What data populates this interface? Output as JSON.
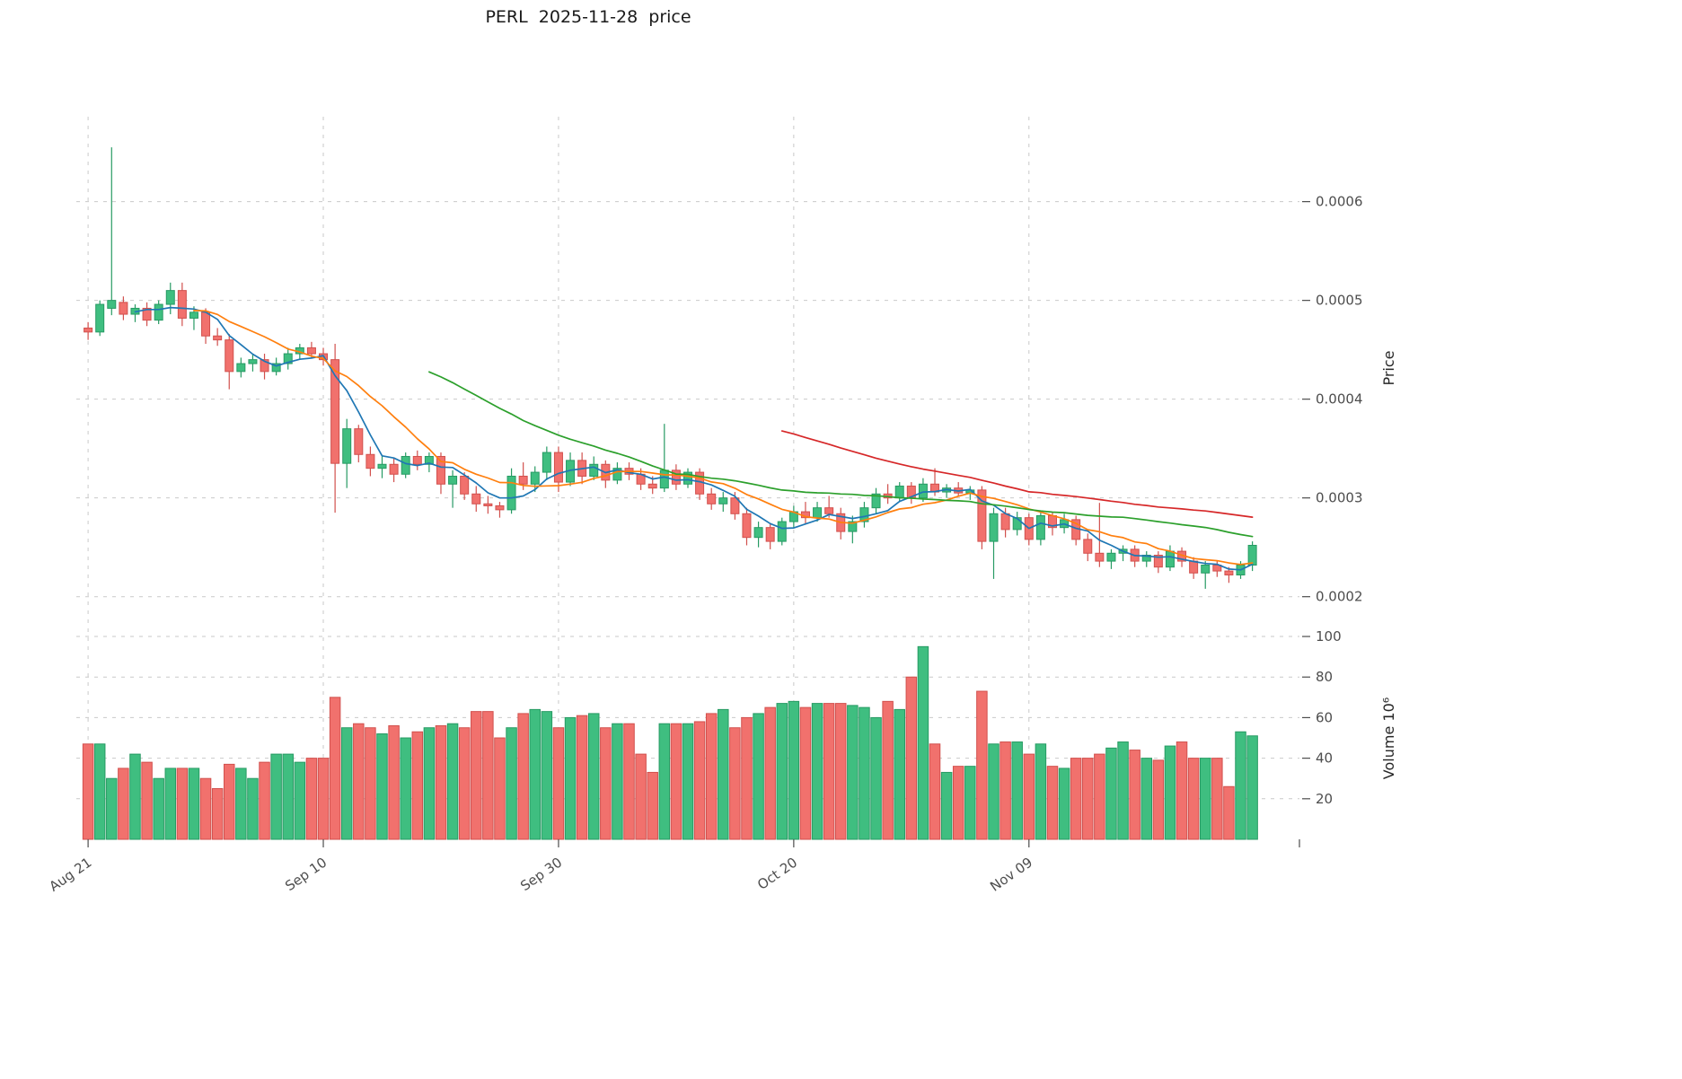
{
  "chart_data": {
    "type": "candlestick",
    "title": "PERL  2025-11-28  price",
    "panels": [
      "price",
      "volume"
    ],
    "price_scale": 0.0001,
    "volume_unit": 1000000,
    "n_points": 100,
    "x_axis": {
      "tick_labels": [
        "Aug 21",
        "Sep 10",
        "Sep 30",
        "Oct 20",
        "Nov 09"
      ],
      "tick_indices": [
        0,
        20,
        40,
        60,
        80
      ],
      "xlim": [
        -1,
        103
      ]
    },
    "price_axis": {
      "label": "Price",
      "tick_labels": [
        "0.0002",
        "0.0003",
        "0.0004",
        "0.0005",
        "0.0006"
      ],
      "tick_values": [
        2,
        3,
        4,
        5,
        6
      ],
      "ylim": [
        1.77,
        6.86
      ],
      "grid": true
    },
    "volume_axis": {
      "label": "Volume  10⁶",
      "tick_labels": [
        "20",
        "40",
        "60",
        "80",
        "100"
      ],
      "tick_values": [
        20,
        40,
        60,
        80,
        100
      ],
      "ylim": [
        0,
        104
      ],
      "grid": true
    },
    "moving_averages": {
      "windows": [
        5,
        10,
        30,
        60
      ],
      "colors": [
        "#1f77b4",
        "#ff7f0e",
        "#2ca02c",
        "#d62728"
      ]
    },
    "colors": {
      "up": "#3fbe80",
      "up_edge": "#279a63",
      "down": "#f1716d",
      "down_edge": "#d1504d",
      "grid": "#c9c9c9",
      "tick_text": "#4d4d4d",
      "title_text": "#1a1a1a"
    },
    "ohlc": [
      [
        4.72,
        4.78,
        4.6,
        4.68
      ],
      [
        4.68,
        5.0,
        4.64,
        4.96
      ],
      [
        4.92,
        6.55,
        4.85,
        5.0
      ],
      [
        4.98,
        5.04,
        4.8,
        4.86
      ],
      [
        4.86,
        4.96,
        4.78,
        4.92
      ],
      [
        4.92,
        4.98,
        4.74,
        4.8
      ],
      [
        4.8,
        5.0,
        4.76,
        4.96
      ],
      [
        4.96,
        5.18,
        4.86,
        5.1
      ],
      [
        5.1,
        5.18,
        4.74,
        4.82
      ],
      [
        4.82,
        4.94,
        4.7,
        4.88
      ],
      [
        4.88,
        4.92,
        4.56,
        4.64
      ],
      [
        4.64,
        4.72,
        4.54,
        4.6
      ],
      [
        4.6,
        4.66,
        4.1,
        4.28
      ],
      [
        4.28,
        4.42,
        4.22,
        4.36
      ],
      [
        4.36,
        4.46,
        4.28,
        4.4
      ],
      [
        4.4,
        4.46,
        4.2,
        4.28
      ],
      [
        4.28,
        4.42,
        4.24,
        4.36
      ],
      [
        4.36,
        4.52,
        4.3,
        4.46
      ],
      [
        4.46,
        4.56,
        4.4,
        4.52
      ],
      [
        4.52,
        4.58,
        4.42,
        4.46
      ],
      [
        4.46,
        4.52,
        4.34,
        4.4
      ],
      [
        4.4,
        4.56,
        2.85,
        3.35
      ],
      [
        3.35,
        3.8,
        3.1,
        3.7
      ],
      [
        3.7,
        3.74,
        3.36,
        3.44
      ],
      [
        3.44,
        3.52,
        3.22,
        3.3
      ],
      [
        3.3,
        3.42,
        3.2,
        3.34
      ],
      [
        3.34,
        3.4,
        3.16,
        3.24
      ],
      [
        3.24,
        3.46,
        3.2,
        3.42
      ],
      [
        3.42,
        3.48,
        3.28,
        3.34
      ],
      [
        3.34,
        3.46,
        3.26,
        3.42
      ],
      [
        3.42,
        3.46,
        3.04,
        3.14
      ],
      [
        3.14,
        3.28,
        2.9,
        3.22
      ],
      [
        3.22,
        3.26,
        2.98,
        3.04
      ],
      [
        3.04,
        3.12,
        2.86,
        2.94
      ],
      [
        2.94,
        3.02,
        2.84,
        2.92
      ],
      [
        2.92,
        2.96,
        2.8,
        2.88
      ],
      [
        2.88,
        3.3,
        2.84,
        3.22
      ],
      [
        3.22,
        3.36,
        3.08,
        3.14
      ],
      [
        3.14,
        3.32,
        3.06,
        3.26
      ],
      [
        3.26,
        3.52,
        3.18,
        3.46
      ],
      [
        3.46,
        3.52,
        3.06,
        3.16
      ],
      [
        3.16,
        3.46,
        3.12,
        3.38
      ],
      [
        3.38,
        3.46,
        3.14,
        3.22
      ],
      [
        3.22,
        3.42,
        3.18,
        3.34
      ],
      [
        3.34,
        3.38,
        3.1,
        3.18
      ],
      [
        3.18,
        3.36,
        3.14,
        3.3
      ],
      [
        3.3,
        3.36,
        3.18,
        3.24
      ],
      [
        3.24,
        3.3,
        3.08,
        3.14
      ],
      [
        3.14,
        3.22,
        3.04,
        3.1
      ],
      [
        3.1,
        3.75,
        3.06,
        3.28
      ],
      [
        3.28,
        3.34,
        3.08,
        3.14
      ],
      [
        3.14,
        3.3,
        3.1,
        3.26
      ],
      [
        3.26,
        3.3,
        2.98,
        3.04
      ],
      [
        3.04,
        3.1,
        2.88,
        2.94
      ],
      [
        2.94,
        3.06,
        2.86,
        3.0
      ],
      [
        3.0,
        3.06,
        2.78,
        2.84
      ],
      [
        2.84,
        2.9,
        2.52,
        2.6
      ],
      [
        2.6,
        2.76,
        2.5,
        2.7
      ],
      [
        2.7,
        2.74,
        2.48,
        2.56
      ],
      [
        2.56,
        2.8,
        2.52,
        2.76
      ],
      [
        2.76,
        2.92,
        2.7,
        2.86
      ],
      [
        2.86,
        2.96,
        2.74,
        2.8
      ],
      [
        2.8,
        2.96,
        2.76,
        2.9
      ],
      [
        2.9,
        3.02,
        2.8,
        2.84
      ],
      [
        2.84,
        2.9,
        2.58,
        2.66
      ],
      [
        2.66,
        2.82,
        2.54,
        2.76
      ],
      [
        2.76,
        2.96,
        2.7,
        2.9
      ],
      [
        2.9,
        3.1,
        2.84,
        3.04
      ],
      [
        3.04,
        3.14,
        2.94,
        3.0
      ],
      [
        3.0,
        3.16,
        2.96,
        3.12
      ],
      [
        3.12,
        3.16,
        2.94,
        3.0
      ],
      [
        3.0,
        3.2,
        2.96,
        3.14
      ],
      [
        3.14,
        3.3,
        3.02,
        3.06
      ],
      [
        3.06,
        3.14,
        3.0,
        3.1
      ],
      [
        3.1,
        3.16,
        3.02,
        3.05
      ],
      [
        3.05,
        3.12,
        2.98,
        3.08
      ],
      [
        3.08,
        3.12,
        2.48,
        2.56
      ],
      [
        2.56,
        2.9,
        2.18,
        2.84
      ],
      [
        2.84,
        2.9,
        2.6,
        2.68
      ],
      [
        2.68,
        2.86,
        2.62,
        2.8
      ],
      [
        2.8,
        2.84,
        2.52,
        2.58
      ],
      [
        2.58,
        2.86,
        2.52,
        2.82
      ],
      [
        2.82,
        2.86,
        2.62,
        2.7
      ],
      [
        2.7,
        2.84,
        2.64,
        2.78
      ],
      [
        2.78,
        2.82,
        2.52,
        2.58
      ],
      [
        2.58,
        2.64,
        2.36,
        2.44
      ],
      [
        2.44,
        2.95,
        2.3,
        2.36
      ],
      [
        2.36,
        2.48,
        2.28,
        2.44
      ],
      [
        2.44,
        2.52,
        2.36,
        2.48
      ],
      [
        2.48,
        2.52,
        2.3,
        2.36
      ],
      [
        2.36,
        2.46,
        2.3,
        2.42
      ],
      [
        2.42,
        2.46,
        2.24,
        2.3
      ],
      [
        2.3,
        2.52,
        2.26,
        2.46
      ],
      [
        2.46,
        2.5,
        2.3,
        2.36
      ],
      [
        2.36,
        2.4,
        2.18,
        2.24
      ],
      [
        2.24,
        2.36,
        2.08,
        2.32
      ],
      [
        2.32,
        2.36,
        2.2,
        2.26
      ],
      [
        2.26,
        2.3,
        2.14,
        2.22
      ],
      [
        2.22,
        2.36,
        2.18,
        2.32
      ],
      [
        2.32,
        2.56,
        2.26,
        2.52
      ]
    ],
    "volume": [
      47,
      47,
      30,
      35,
      42,
      38,
      30,
      35,
      35,
      35,
      30,
      25,
      37,
      35,
      30,
      38,
      42,
      42,
      38,
      40,
      40,
      70,
      55,
      57,
      55,
      52,
      56,
      50,
      53,
      55,
      56,
      57,
      55,
      63,
      63,
      50,
      55,
      62,
      64,
      63,
      55,
      60,
      61,
      62,
      55,
      57,
      57,
      42,
      33,
      57,
      57,
      57,
      58,
      62,
      64,
      55,
      60,
      62,
      65,
      67,
      68,
      65,
      67,
      67,
      67,
      66,
      65,
      60,
      68,
      64,
      80,
      95,
      47,
      33,
      36,
      36,
      73,
      47,
      48,
      48,
      42,
      47,
      36,
      35,
      40,
      40,
      42,
      45,
      48,
      44,
      40,
      39,
      46,
      48,
      40,
      40,
      40,
      26,
      53,
      51
    ]
  }
}
